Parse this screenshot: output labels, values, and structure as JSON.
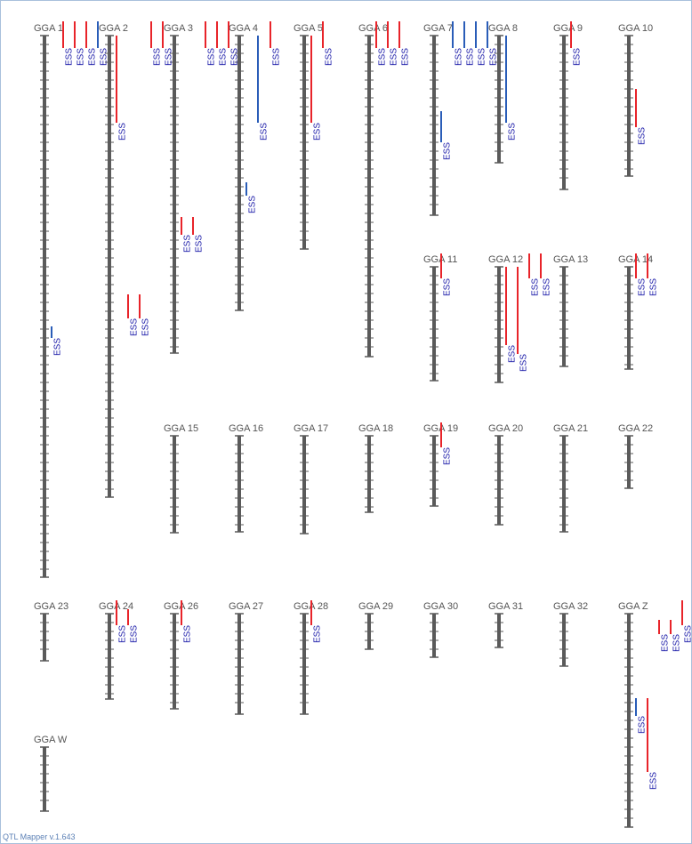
{
  "chromosomes": [
    {
      "label": "GGA 1",
      "qtls": [
        {
          "label": "ESS"
        },
        {
          "label": "ESS"
        },
        {
          "label": "ESS"
        },
        {
          "label": "ESS"
        },
        {
          "label": "ESS"
        }
      ]
    },
    {
      "label": "GGA 2",
      "qtls": [
        {
          "label": "ESS"
        },
        {
          "label": "ESS"
        },
        {
          "label": "ESS"
        }
      ]
    },
    {
      "label": "GGA 3",
      "qtls": [
        {
          "label": "ESS"
        },
        {
          "label": "ESS"
        },
        {
          "label": "ESS"
        },
        {
          "label": "ESS"
        }
      ]
    },
    {
      "label": "GGA 4",
      "qtls": [
        {
          "label": "ESS"
        },
        {
          "label": "ESS"
        },
        {
          "label": "ESS"
        },
        {
          "label": "ESS"
        },
        {
          "label": "ESS"
        }
      ]
    },
    {
      "label": "GGA 5",
      "qtls": [
        {
          "label": "ESS"
        },
        {
          "label": "ESS"
        },
        {
          "label": "ESS"
        }
      ]
    },
    {
      "label": "GGA 6",
      "qtls": [
        {
          "label": "ESS"
        },
        {
          "label": "ESS"
        },
        {
          "label": "ESS"
        }
      ]
    },
    {
      "label": "GGA 7",
      "qtls": [
        {
          "label": "ESS"
        },
        {
          "label": "ESS"
        },
        {
          "label": "ESS"
        },
        {
          "label": "ESS"
        },
        {
          "label": "ESS"
        }
      ]
    },
    {
      "label": "GGA 8",
      "qtls": [
        {
          "label": "ESS"
        }
      ]
    },
    {
      "label": "GGA 9",
      "qtls": [
        {
          "label": "ESS"
        }
      ]
    },
    {
      "label": "GGA 10",
      "qtls": [
        {
          "label": "ESS"
        }
      ]
    },
    {
      "label": "GGA 11",
      "qtls": [
        {
          "label": "ESS"
        }
      ]
    },
    {
      "label": "GGA 12",
      "qtls": [
        {
          "label": "ESS"
        },
        {
          "label": "ESS"
        },
        {
          "label": "ESS"
        },
        {
          "label": "ESS"
        }
      ]
    },
    {
      "label": "GGA 13",
      "qtls": []
    },
    {
      "label": "GGA 14",
      "qtls": [
        {
          "label": "ESS"
        },
        {
          "label": "ESS"
        }
      ]
    },
    {
      "label": "GGA 15",
      "qtls": []
    },
    {
      "label": "GGA 16",
      "qtls": []
    },
    {
      "label": "GGA 17",
      "qtls": []
    },
    {
      "label": "GGA 18",
      "qtls": []
    },
    {
      "label": "GGA 19",
      "qtls": [
        {
          "label": "ESS"
        }
      ]
    },
    {
      "label": "GGA 20",
      "qtls": []
    },
    {
      "label": "GGA 21",
      "qtls": []
    },
    {
      "label": "GGA 22",
      "qtls": []
    },
    {
      "label": "GGA 23",
      "qtls": []
    },
    {
      "label": "GGA 24",
      "qtls": [
        {
          "label": "ESS"
        },
        {
          "label": "ESS"
        }
      ]
    },
    {
      "label": "GGA 26",
      "qtls": [
        {
          "label": "ESS"
        }
      ]
    },
    {
      "label": "GGA 27",
      "qtls": []
    },
    {
      "label": "GGA 28",
      "qtls": [
        {
          "label": "ESS"
        }
      ]
    },
    {
      "label": "GGA 29",
      "qtls": []
    },
    {
      "label": "GGA 30",
      "qtls": []
    },
    {
      "label": "GGA 31",
      "qtls": []
    },
    {
      "label": "GGA 32",
      "qtls": []
    },
    {
      "label": "GGA Z",
      "qtls": [
        {
          "label": "ESS"
        },
        {
          "label": "ESS"
        },
        {
          "label": "ESS"
        },
        {
          "label": "ESS"
        },
        {
          "label": "ESS"
        }
      ]
    },
    {
      "label": "GGA W",
      "qtls": []
    }
  ],
  "footer": "QTL Mapper v.1.643"
}
